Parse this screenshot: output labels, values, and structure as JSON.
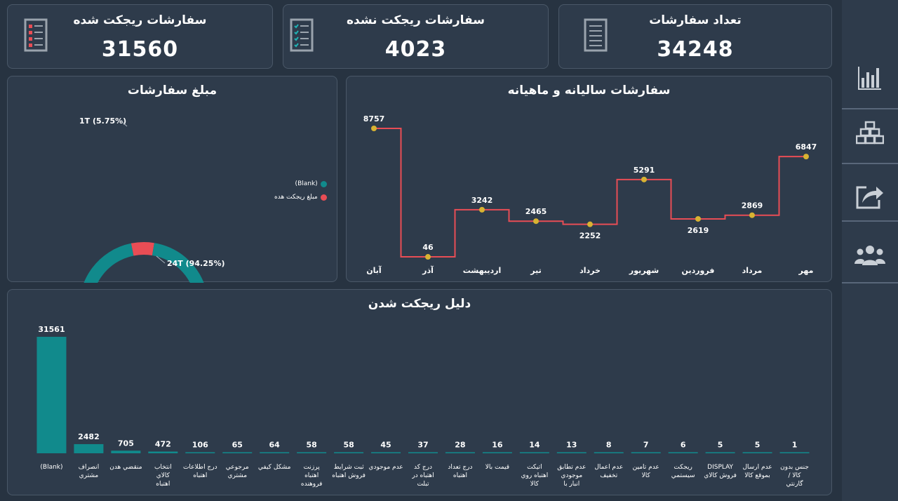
{
  "kpis": {
    "rejected": {
      "title": "سفارشات ریجکت شده",
      "value": "31560"
    },
    "not_rejected": {
      "title": "سفارشات ریجکت نشده",
      "value": "4023"
    },
    "total": {
      "title": "تعداد سفارشات",
      "value": "34248"
    }
  },
  "donut": {
    "title": "مبلغ سفارشات",
    "legend": [
      {
        "label": "(Blank)",
        "color": "#118a8c"
      },
      {
        "label": "مبلغ ریجکت هده",
        "color": "#e84d55"
      }
    ]
  },
  "line": {
    "title": "سفارشات سالیانه و ماهیانه"
  },
  "bars": {
    "title": "دلیل ریجکت شدن"
  },
  "colors": {
    "teal": "#118a8c",
    "red": "#e84d55",
    "dot": "#d8b332"
  },
  "chart_data": [
    {
      "type": "pie",
      "title": "مبلغ سفارشات",
      "slices": [
        {
          "name": "(Blank)",
          "value": 94.25,
          "label": "24T (94.25%)"
        },
        {
          "name": "مبلغ ریجکت هده",
          "value": 5.75,
          "label": "1T (5.75%)"
        }
      ]
    },
    {
      "type": "line",
      "title": "سفارشات سالیانه و ماهیانه",
      "categories": [
        "آبان",
        "آذر",
        "اردیبهشت",
        "تیر",
        "خرداد",
        "شهریور",
        "فروردین",
        "مرداد",
        "مهر"
      ],
      "values": [
        8757,
        46,
        3242,
        2465,
        2252,
        5291,
        2619,
        2869,
        6847
      ]
    },
    {
      "type": "bar",
      "title": "دلیل ریجکت شدن",
      "categories": [
        "(Blank)",
        "انصراف مشتري",
        "منقضي هدن",
        "انتخاب كالاي اهتباه",
        "درج اطلاعات اهتباه",
        "مرجوعي مشتري",
        "مشكل كيفي",
        "پرزنت اهتباه فروهنده",
        "ثبت شرايط فروش اهتباه",
        "عدم موجودي",
        "درج كد اهتباه در تبلت",
        "درج تعداد اهتباه",
        "قيمت بالا",
        "اتيكت اهتباه روي كالا",
        "عدم تطابق موجودي انبار با سيست",
        "عدم اعمال تخفيف",
        "عدم تامين كالا",
        "ريجكت سيستمي",
        "DISPLAY فروش كالاي",
        "عدم ارسال بموقع كالا",
        "جنس بدون كالا / گارنتي"
      ],
      "values": [
        31561,
        2482,
        705,
        472,
        106,
        65,
        64,
        58,
        58,
        45,
        37,
        28,
        16,
        14,
        13,
        8,
        7,
        6,
        5,
        5,
        1
      ]
    }
  ]
}
